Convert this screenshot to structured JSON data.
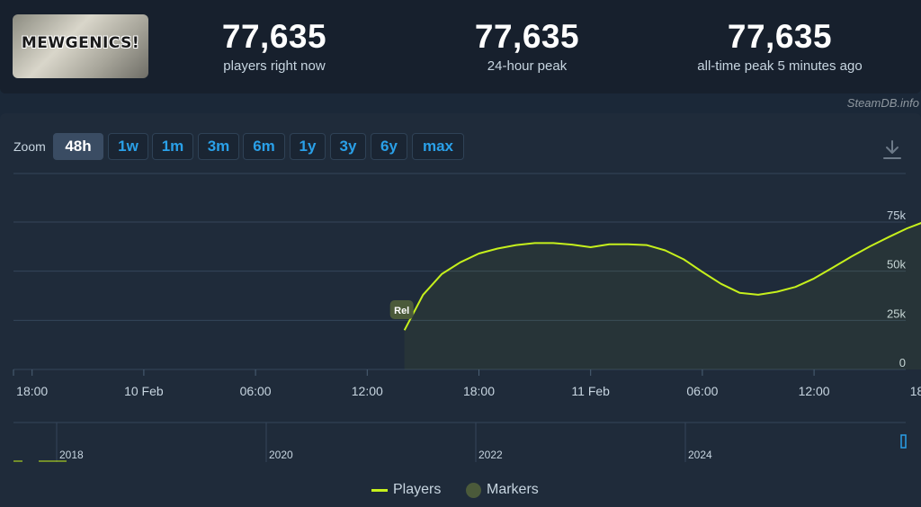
{
  "logo": {
    "text": "MEWGENICS!"
  },
  "stats": [
    {
      "value": "77,635",
      "label": "players right now"
    },
    {
      "value": "77,635",
      "label": "24-hour peak"
    },
    {
      "value": "77,635",
      "label": "all-time peak 5 minutes ago"
    }
  ],
  "credit": "SteamDB.info",
  "zoom": {
    "label": "Zoom",
    "options": [
      "48h",
      "1w",
      "1m",
      "3m",
      "6m",
      "1y",
      "3y",
      "6y",
      "max"
    ],
    "selected": "48h"
  },
  "icons": {
    "download": "download-icon"
  },
  "colors": {
    "players": "#c6f01c",
    "marker": "#4b5a3a",
    "accent": "#2aa0e8"
  },
  "legend": [
    {
      "name": "Players",
      "icon": "line"
    },
    {
      "name": "Markers",
      "icon": "dot"
    }
  ],
  "chart_data": {
    "type": "line",
    "series": [
      {
        "name": "Players",
        "x": [
          "2026-02-10T14:00",
          "2026-02-10T15:00",
          "2026-02-10T16:00",
          "2026-02-10T17:00",
          "2026-02-10T18:00",
          "2026-02-10T19:00",
          "2026-02-10T20:00",
          "2026-02-10T21:00",
          "2026-02-10T22:00",
          "2026-02-10T23:00",
          "2026-02-11T00:00",
          "2026-02-11T01:00",
          "2026-02-11T02:00",
          "2026-02-11T03:00",
          "2026-02-11T04:00",
          "2026-02-11T05:00",
          "2026-02-11T06:00",
          "2026-02-11T07:00",
          "2026-02-11T08:00",
          "2026-02-11T09:00",
          "2026-02-11T10:00",
          "2026-02-11T11:00",
          "2026-02-11T12:00",
          "2026-02-11T13:00",
          "2026-02-11T14:00",
          "2026-02-11T15:00",
          "2026-02-11T16:00",
          "2026-02-11T17:00",
          "2026-02-11T18:00",
          "2026-02-11T18:40"
        ],
        "values": [
          20000,
          38000,
          48500,
          54500,
          59000,
          61500,
          63300,
          64300,
          64300,
          63500,
          62200,
          63700,
          63700,
          63300,
          60600,
          56000,
          49600,
          43600,
          39000,
          38000,
          39500,
          42000,
          46300,
          51800,
          57400,
          62600,
          67300,
          71800,
          75400,
          77635
        ]
      }
    ],
    "markers": [
      {
        "x": "2026-02-10T14:00",
        "label": "Rel"
      }
    ],
    "x_ticks": [
      "18:00",
      "10 Feb",
      "06:00",
      "12:00",
      "18:00",
      "11 Feb",
      "06:00",
      "12:00",
      "18:00"
    ],
    "y_ticks": [
      "0",
      "25k",
      "50k",
      "75k"
    ],
    "ylim": [
      0,
      75000
    ],
    "grid": true,
    "navigator": {
      "labels": [
        "2018",
        "2020",
        "2022",
        "2024"
      ]
    },
    "legend_placement": "bottom-center"
  }
}
